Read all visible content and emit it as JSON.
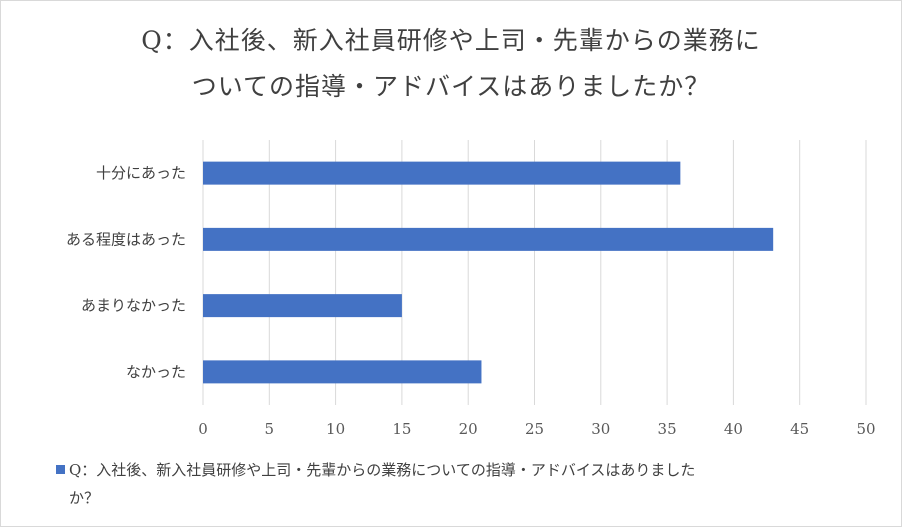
{
  "chart_data": {
    "type": "bar",
    "orientation": "horizontal",
    "title_lines": [
      "Q：入社後、新入社員研修や上司・先輩からの業務に",
      "ついての指導・アドバイスはありましたか？"
    ],
    "categories": [
      "十分にあった",
      "ある程度はあった",
      "あまりなかった",
      "なかった"
    ],
    "series": [
      {
        "name": "Q：入社後、新入社員研修や上司・先輩からの業務についての指導・アドバイスはありましたか？",
        "values": [
          36,
          43,
          15,
          21
        ],
        "color": "#4472c4"
      }
    ],
    "xlim": [
      0,
      50
    ],
    "xticks": [
      0,
      5,
      10,
      15,
      20,
      25,
      30,
      35,
      40,
      45,
      50
    ],
    "grid": true,
    "legend_position": "bottom"
  },
  "legend": {
    "line1": "Q：入社後、新入社員研修や上司・先輩からの業務についての指導・アドバイスはありました",
    "line2": "か？"
  }
}
